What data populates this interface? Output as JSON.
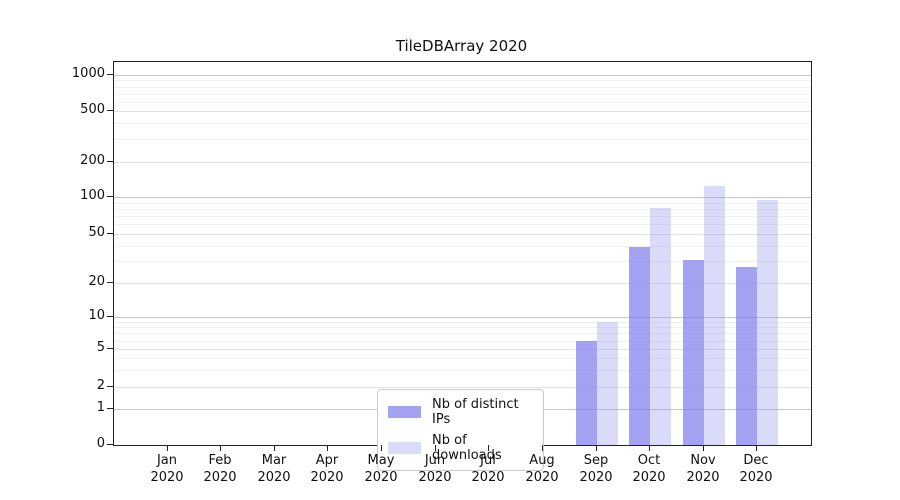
{
  "title": "TileDBArray 2020",
  "chart_data": {
    "type": "bar",
    "title": "TileDBArray 2020",
    "categories": [
      "Jan 2020",
      "Feb 2020",
      "Mar 2020",
      "Apr 2020",
      "May 2020",
      "Jun 2020",
      "Jul 2020",
      "Aug 2020",
      "Sep 2020",
      "Oct 2020",
      "Nov 2020",
      "Dec 2020"
    ],
    "series": [
      {
        "name": "Nb of distinct IPs",
        "color_key": "distinct_ips",
        "values": [
          0,
          0,
          0,
          0,
          0,
          0,
          0,
          0,
          6,
          39,
          31,
          27
        ]
      },
      {
        "name": "Nb of downloads",
        "color_key": "downloads",
        "values": [
          0,
          0,
          0,
          0,
          0,
          0,
          0,
          0,
          9,
          82,
          125,
          95
        ]
      }
    ],
    "yticks": [
      0,
      1,
      2,
      5,
      10,
      20,
      50,
      100,
      200,
      500,
      1000
    ],
    "ylim": [
      0,
      1300
    ],
    "y_scale": "log-like (0 to 1 linear, log decades above)",
    "grid": "on",
    "legend_position": "lower center inside plot",
    "xlabel": "",
    "ylabel": ""
  },
  "colors": {
    "distinct_ips": "rgba(127,127,235,0.72)",
    "downloads": "rgba(143,143,238,0.33)",
    "major_grid": "#c6c6c6",
    "mid_grid": "#e2e2e2",
    "minor_grid": "#f0f0f0",
    "axis": "#222222",
    "background": "#ffffff"
  }
}
